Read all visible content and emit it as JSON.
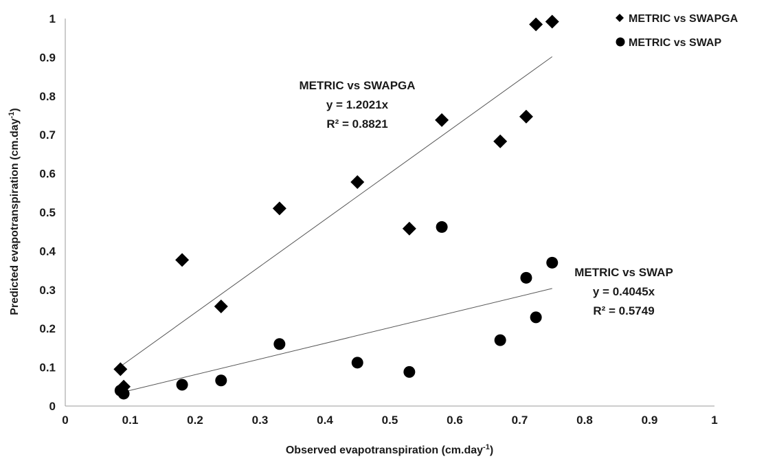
{
  "chart_data": {
    "type": "scatter",
    "title": "",
    "xlabel": "Observed evapotranspiration (cm.day",
    "xlabel_sup": "-1",
    "xlabel_end": ")",
    "ylabel": "Predicted evapotranspiration (cm.day",
    "ylabel_sup": "-1",
    "ylabel_end": ")",
    "xlim": [
      0,
      1
    ],
    "ylim": [
      0,
      1
    ],
    "xticks": [
      "0",
      "0.1",
      "0.2",
      "0.3",
      "0.4",
      "0.5",
      "0.6",
      "0.7",
      "0.8",
      "0.9",
      "1"
    ],
    "yticks": [
      "0",
      "0.1",
      "0.2",
      "0.3",
      "0.4",
      "0.5",
      "0.6",
      "0.7",
      "0.8",
      "0.9",
      "1"
    ],
    "grid": false,
    "legend_position": "top-right",
    "series": [
      {
        "name": "METRIC vs SWAPGA",
        "marker": "diamond",
        "color": "#000000",
        "points": [
          {
            "x": 0.085,
            "y": 0.095
          },
          {
            "x": 0.09,
            "y": 0.05
          },
          {
            "x": 0.18,
            "y": 0.377
          },
          {
            "x": 0.24,
            "y": 0.257
          },
          {
            "x": 0.33,
            "y": 0.51
          },
          {
            "x": 0.45,
            "y": 0.578
          },
          {
            "x": 0.53,
            "y": 0.458
          },
          {
            "x": 0.58,
            "y": 0.738
          },
          {
            "x": 0.67,
            "y": 0.683
          },
          {
            "x": 0.71,
            "y": 0.747
          },
          {
            "x": 0.725,
            "y": 0.985
          },
          {
            "x": 0.75,
            "y": 0.992
          }
        ],
        "trendline": {
          "slope": 1.2021,
          "x_range": [
            0.085,
            0.75
          ],
          "label_name": "METRIC vs SWAPGA",
          "equation": "y = 1.2021x",
          "r2": "R² = 0.8821"
        }
      },
      {
        "name": "METRIC vs SWAP",
        "marker": "circle",
        "color": "#000000",
        "points": [
          {
            "x": 0.085,
            "y": 0.04
          },
          {
            "x": 0.09,
            "y": 0.032
          },
          {
            "x": 0.18,
            "y": 0.055
          },
          {
            "x": 0.24,
            "y": 0.066
          },
          {
            "x": 0.33,
            "y": 0.16
          },
          {
            "x": 0.45,
            "y": 0.112
          },
          {
            "x": 0.53,
            "y": 0.088
          },
          {
            "x": 0.58,
            "y": 0.462
          },
          {
            "x": 0.67,
            "y": 0.17
          },
          {
            "x": 0.71,
            "y": 0.331
          },
          {
            "x": 0.725,
            "y": 0.229
          },
          {
            "x": 0.75,
            "y": 0.37
          }
        ],
        "trendline": {
          "slope": 0.4045,
          "x_range": [
            0.085,
            0.75
          ],
          "label_name": "METRIC vs SWAP",
          "equation": "y = 0.4045x",
          "r2": "R² = 0.5749"
        }
      }
    ]
  }
}
